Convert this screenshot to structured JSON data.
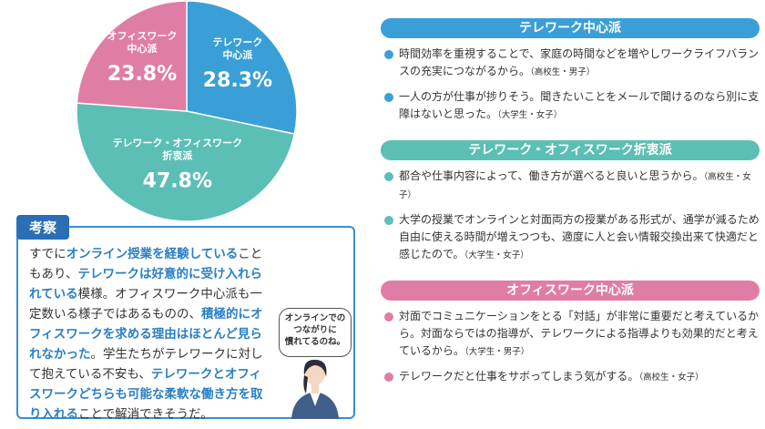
{
  "chart_data": {
    "type": "pie",
    "categories": [
      "テレワーク\n中心派",
      "テレワーク・オフィスワーク\n折衷派",
      "オフィスワーク\n中心派"
    ],
    "values": [
      28.3,
      47.8,
      23.8
    ],
    "value_labels": [
      "28.3%",
      "47.8%",
      "23.8%"
    ],
    "colors": [
      "#3a9fd6",
      "#5bbfb5",
      "#e07da5"
    ]
  },
  "consideration": {
    "title": "考察",
    "paragraph": [
      {
        "text": "すでに",
        "emphasis": false
      },
      {
        "text": "オンライン授業を経験している",
        "emphasis": true
      },
      {
        "text": "こともあり、",
        "emphasis": false
      },
      {
        "text": "テレワークは好意的に受け入れられている",
        "emphasis": true
      },
      {
        "text": "模様。オフィスワーク中心派も一定数いる様子ではあるものの、",
        "emphasis": false
      },
      {
        "text": "積極的にオフィスワークを求める理由はほとんど見られなかった",
        "emphasis": true
      },
      {
        "text": "。学生たちがテレワークに対して抱えている不安も、",
        "emphasis": false
      },
      {
        "text": "テレワークとオフィスワークどちらも可能な柔軟な働き方を取り入れる",
        "emphasis": true
      },
      {
        "text": "ことで解消できそうだ。",
        "emphasis": false
      }
    ],
    "bubble": "オンラインでの\nつながりに\n慣れてるのね。"
  },
  "sections": [
    {
      "title": "テレワーク中心派",
      "color": "#3a9fd6",
      "items": [
        {
          "text": "時間効率を重視することで、家庭の時間などを増やしワークライフバランスの充実につながるから。",
          "attribution": "（高校生・男子）"
        },
        {
          "text": "一人の方が仕事が捗りそう。聞きたいことをメールで聞けるのなら別に支障はないと思った。",
          "attribution": "（大学生・女子）"
        }
      ]
    },
    {
      "title": "テレワーク・オフィスワーク折衷派",
      "color": "#5bbfb5",
      "items": [
        {
          "text": "都合や仕事内容によって、働き方が選べると良いと思うから。",
          "attribution": "（高校生・女子）"
        },
        {
          "text": "大学の授業でオンラインと対面両方の授業がある形式が、通学が減るため自由に使える時間が増えつつも、適度に人と会い情報交換出来て快適だと感じたので。",
          "attribution": "（大学生・女子）"
        }
      ]
    },
    {
      "title": "オフィスワーク中心派",
      "color": "#e07da5",
      "items": [
        {
          "text": "対面でコミュニケーションをとる「対話」が非常に重要だと考えているから。対面ならではの指導が、テレワークによる指導よりも効果的だと考えているから。",
          "attribution": "（大学生・男子）"
        },
        {
          "text": "テレワークだと仕事をサボってしまう気がする。",
          "attribution": "（高校生・女子）"
        }
      ]
    }
  ]
}
